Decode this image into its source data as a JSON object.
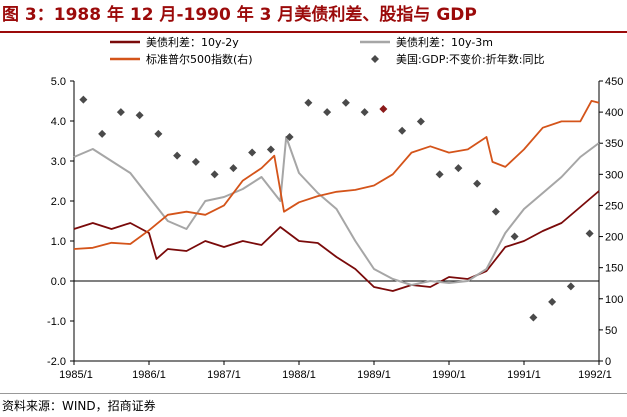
{
  "title": "图 3：1988 年 12 月-1990 年 3 月美债利差、股指与 GDP",
  "source": "资料来源：WIND，招商证券",
  "colors": {
    "title": "#9b0a0a",
    "spread_10y2y": "#7a0a0a",
    "spread_10y3m": "#a6a6a6",
    "sp500": "#d4541a",
    "gdp": "#4a4a4a",
    "gdp_highlight": "#8b1a1a"
  },
  "chart_data": {
    "type": "line",
    "title": "1988 年 12 月-1990 年 3 月美债利差、股指与 GDP",
    "x_start": 1985.0,
    "x_end": 1992.0,
    "x_ticks": [
      {
        "x": 1985.0,
        "label": "1985/1"
      },
      {
        "x": 1986.0,
        "label": "1986/1"
      },
      {
        "x": 1987.0,
        "label": "1987/1"
      },
      {
        "x": 1988.0,
        "label": "1988/1"
      },
      {
        "x": 1989.0,
        "label": "1989/1"
      },
      {
        "x": 1990.0,
        "label": "1990/1"
      },
      {
        "x": 1991.0,
        "label": "1991/1"
      },
      {
        "x": 1992.0,
        "label": "1992/1"
      }
    ],
    "left_axis": {
      "ylim": [
        -2.0,
        5.0
      ],
      "ticks": [
        {
          "v": 5.0,
          "label": "5.0"
        },
        {
          "v": 4.0,
          "label": "4.0"
        },
        {
          "v": 3.0,
          "label": "3.0"
        },
        {
          "v": 2.0,
          "label": "2.0"
        },
        {
          "v": 1.0,
          "label": "1.0"
        },
        {
          "v": 0.0,
          "label": "0.0"
        },
        {
          "v": -1.0,
          "label": "-1.0"
        },
        {
          "v": -2.0,
          "label": "-2.0"
        }
      ]
    },
    "right_axis": {
      "ylim": [
        0,
        450
      ],
      "ticks": [
        {
          "v": 450,
          "label": "450"
        },
        {
          "v": 400,
          "label": "400"
        },
        {
          "v": 350,
          "label": "350"
        },
        {
          "v": 300,
          "label": "300"
        },
        {
          "v": 250,
          "label": "250"
        },
        {
          "v": 200,
          "label": "200"
        },
        {
          "v": 150,
          "label": "150"
        },
        {
          "v": 100,
          "label": "100"
        },
        {
          "v": 50,
          "label": "50"
        },
        {
          "v": 0,
          "label": "0"
        }
      ]
    },
    "legend": [
      {
        "key": "spread_10y2y",
        "label": "美债利差：10y-2y",
        "kind": "line"
      },
      {
        "key": "spread_10y3m",
        "label": "美债利差：10y-3m",
        "kind": "line"
      },
      {
        "key": "sp500",
        "label": "标准普尔500指数(右)",
        "kind": "line"
      },
      {
        "key": "gdp",
        "label": "美国:GDP:不变价:折年数:同比",
        "kind": "marker"
      }
    ],
    "series": [
      {
        "key": "spread_10y2y",
        "name": "美债利差：10y-2y",
        "axis": "left",
        "x": [
          1985.0,
          1985.25,
          1985.5,
          1985.75,
          1986.0,
          1986.1,
          1986.25,
          1986.5,
          1986.75,
          1987.0,
          1987.25,
          1987.5,
          1987.75,
          1988.0,
          1988.25,
          1988.5,
          1988.75,
          1989.0,
          1989.25,
          1989.5,
          1989.75,
          1990.0,
          1990.25,
          1990.5,
          1990.75,
          1991.0,
          1991.25,
          1991.5,
          1991.75,
          1992.0
        ],
        "values": [
          1.3,
          1.45,
          1.3,
          1.45,
          1.2,
          0.55,
          0.8,
          0.75,
          1.0,
          0.85,
          1.0,
          0.9,
          1.35,
          1.0,
          0.95,
          0.6,
          0.3,
          -0.15,
          -0.25,
          -0.1,
          -0.15,
          0.1,
          0.05,
          0.25,
          0.85,
          1.0,
          1.25,
          1.45,
          1.85,
          2.25
        ]
      },
      {
        "key": "spread_10y3m",
        "name": "美债利差：10y-3m",
        "axis": "left",
        "x": [
          1985.0,
          1985.25,
          1985.5,
          1985.75,
          1986.0,
          1986.25,
          1986.5,
          1986.75,
          1987.0,
          1987.25,
          1987.5,
          1987.75,
          1987.83,
          1988.0,
          1988.25,
          1988.5,
          1988.75,
          1989.0,
          1989.25,
          1989.5,
          1989.75,
          1990.0,
          1990.25,
          1990.5,
          1990.75,
          1991.0,
          1991.25,
          1991.5,
          1991.75,
          1992.0
        ],
        "values": [
          3.1,
          3.3,
          3.0,
          2.7,
          2.1,
          1.5,
          1.3,
          2.0,
          2.1,
          2.3,
          2.6,
          2.0,
          3.6,
          2.7,
          2.2,
          1.8,
          1.0,
          0.3,
          0.05,
          -0.1,
          0.0,
          -0.05,
          0.0,
          0.3,
          1.2,
          1.8,
          2.2,
          2.6,
          3.1,
          3.45
        ]
      },
      {
        "key": "sp500",
        "name": "标准普尔500指数(右)",
        "axis": "right",
        "x": [
          1985.0,
          1985.25,
          1985.5,
          1985.75,
          1986.0,
          1986.25,
          1986.5,
          1986.75,
          1987.0,
          1987.25,
          1987.5,
          1987.67,
          1987.8,
          1988.0,
          1988.25,
          1988.5,
          1988.75,
          1989.0,
          1989.25,
          1989.5,
          1989.75,
          1990.0,
          1990.25,
          1990.5,
          1990.58,
          1990.75,
          1991.0,
          1991.25,
          1991.5,
          1991.75,
          1991.9,
          1992.0
        ],
        "values": [
          180,
          182,
          190,
          188,
          210,
          235,
          240,
          235,
          250,
          290,
          310,
          330,
          240,
          255,
          265,
          272,
          275,
          282,
          300,
          335,
          345,
          335,
          340,
          360,
          320,
          312,
          340,
          375,
          385,
          385,
          418,
          415
        ]
      }
    ],
    "gdp_points": {
      "name": "美国:GDP:不变价:折年数:同比",
      "axis": "right",
      "x": [
        1985.125,
        1985.375,
        1985.625,
        1985.875,
        1986.125,
        1986.375,
        1986.625,
        1986.875,
        1987.125,
        1987.375,
        1987.625,
        1987.875,
        1988.125,
        1988.375,
        1988.625,
        1988.875,
        1989.125,
        1989.375,
        1989.625,
        1989.875,
        1990.125,
        1990.375,
        1990.625,
        1990.875,
        1991.125,
        1991.375,
        1991.625,
        1991.875
      ],
      "values": [
        420,
        365,
        400,
        395,
        365,
        330,
        320,
        300,
        310,
        335,
        340,
        360,
        415,
        400,
        415,
        400,
        405,
        370,
        385,
        300,
        310,
        285,
        240,
        200,
        70,
        95,
        120,
        205
      ],
      "highlight_index": 16
    }
  }
}
